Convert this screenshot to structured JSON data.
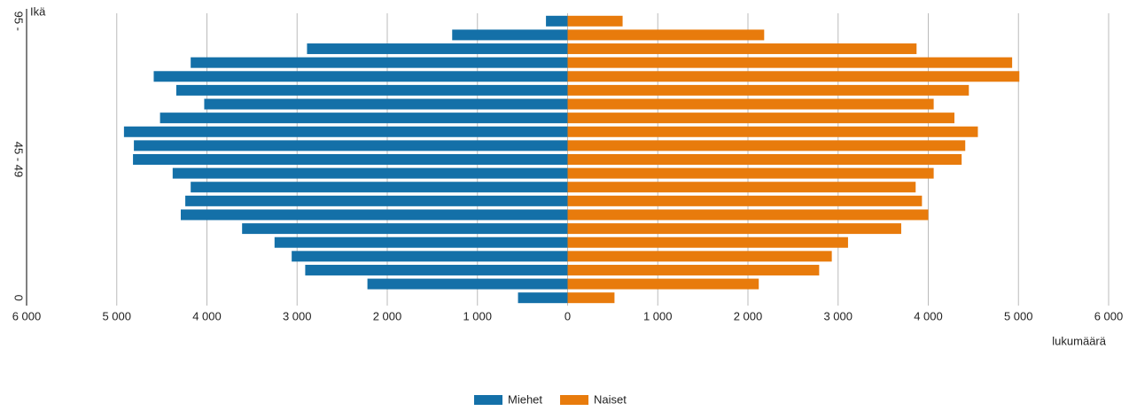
{
  "chart_data": {
    "type": "pyramid",
    "y_label": "Ikä",
    "x_label": "lukumäärä",
    "categories": [
      "0",
      null,
      null,
      null,
      null,
      null,
      null,
      null,
      null,
      null,
      "45 - 49",
      null,
      null,
      null,
      null,
      null,
      null,
      null,
      null,
      null,
      "95 -"
    ],
    "series": [
      {
        "name": "Miehet",
        "color": "#1470a8",
        "values": [
          -550,
          -2220,
          -2910,
          -3060,
          -3250,
          -3610,
          -4290,
          -4240,
          -4180,
          -4380,
          -4820,
          -4810,
          -4920,
          -4520,
          -4030,
          -4340,
          -4590,
          -4180,
          -2890,
          -1280,
          -240
        ]
      },
      {
        "name": "Naiset",
        "color": "#e87b0c",
        "values": [
          520,
          2120,
          2790,
          2930,
          3110,
          3700,
          4000,
          3930,
          3860,
          4060,
          4370,
          4410,
          4550,
          4290,
          4060,
          4450,
          5010,
          4930,
          3870,
          2180,
          610
        ]
      }
    ],
    "xlim": [
      -6000,
      6000
    ],
    "xticks": [
      {
        "value": -6000,
        "label": "6 000"
      },
      {
        "value": -5000,
        "label": "5 000"
      },
      {
        "value": -4000,
        "label": "4 000"
      },
      {
        "value": -3000,
        "label": "3 000"
      },
      {
        "value": -2000,
        "label": "2 000"
      },
      {
        "value": -1000,
        "label": "1 000"
      },
      0,
      {
        "value": 1000,
        "label": "1 000"
      },
      {
        "value": 2000,
        "label": "2 000"
      },
      {
        "value": 3000,
        "label": "3 000"
      },
      {
        "value": 4000,
        "label": "4 000"
      },
      {
        "value": 5000,
        "label": "5 000"
      },
      {
        "value": 6000,
        "label": "6 000"
      }
    ],
    "grid": true,
    "legend": "bottom"
  }
}
